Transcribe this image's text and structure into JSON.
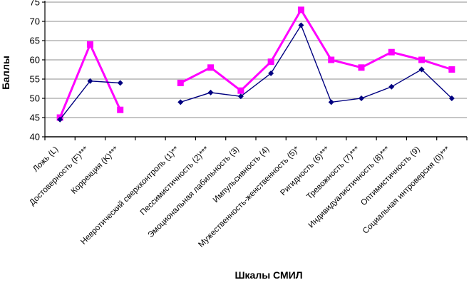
{
  "chart_data": {
    "type": "line",
    "title": "",
    "ylabel": "Баллы",
    "xlabel": "Шкалы СМИЛ",
    "ylim": [
      40,
      75
    ],
    "ytick_step": 5,
    "yticks": [
      40,
      45,
      50,
      55,
      60,
      65,
      70,
      75
    ],
    "grid": "horizontal",
    "legend": "none",
    "note_gap": "empty category slot (index 3) splits both series into two segments",
    "categories": [
      "Ложь (L)",
      "Достоверность (F)***",
      "Коррекция (K)***",
      "",
      "Невротический сверхконтроль (1)**",
      "Пессимистичность (2)***",
      "Эмоциональная лабильность (3)",
      "Импульсивность (4)",
      "Мужественность-женственность (5)*",
      "Ригидность (6)***",
      "Тревожность (7)***",
      "Индивидуалистичность (8)***",
      "Оптимистичность (9)",
      "Социальная интроверсия (0)***"
    ],
    "series": [
      {
        "name": "magenta-squares-series",
        "color": "#FF00FF",
        "marker": "square",
        "marker_size": 9,
        "line_width": 3,
        "values": [
          45,
          64,
          47,
          null,
          54,
          58,
          52,
          59.5,
          73,
          60,
          58,
          62,
          60,
          57.5
        ]
      },
      {
        "name": "navy-diamonds-series",
        "color": "#000080",
        "marker": "diamond",
        "marker_size": 8,
        "line_width": 1.4,
        "values": [
          44.5,
          54.5,
          54,
          null,
          49,
          51.5,
          50.5,
          56.5,
          69,
          49,
          50,
          53,
          57.5,
          50
        ]
      }
    ],
    "colors": {
      "grid": "#8c8c8c",
      "axis": "#000000",
      "text": "#000000",
      "background": "#FFFFFF"
    }
  }
}
